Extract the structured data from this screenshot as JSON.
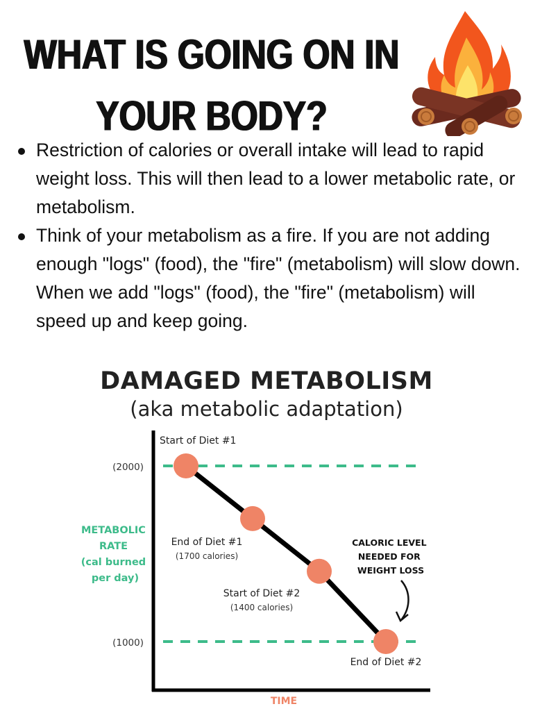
{
  "header": {
    "title_lines": [
      "What is going on in",
      "your body?"
    ],
    "icon": "campfire-icon"
  },
  "bullets": [
    "Restriction of calories or overall intake will lead to rapid weight loss. This will then lead to a lower metabolic rate, or metabolism.",
    "Think of your metabolism as a fire. If you are not adding enough \"logs\" (food), the \"fire\" (metabolism) will slow down. When we add \"logs\" (food), the \"fire\" (metabolism) will speed up and keep going."
  ],
  "chart_data": {
    "type": "line",
    "title": "DAMAGED METABOLISM",
    "subtitle": "(aka metabolic adaptation)",
    "xlabel": "TIME",
    "ylabel": [
      "METABOLIC",
      "RATE",
      "(cal burned",
      "per day)"
    ],
    "yticks": [
      {
        "value": 2000,
        "label": "(2000)"
      },
      {
        "value": 1000,
        "label": "(1000)"
      }
    ],
    "reference_lines": [
      2000,
      1000
    ],
    "points": [
      {
        "x": 1,
        "y": 2000,
        "label": "Start of Diet #1",
        "sublabel": ""
      },
      {
        "x": 2,
        "y": 1700,
        "label": "End of Diet #1",
        "sublabel": "(1700 calories)"
      },
      {
        "x": 3,
        "y": 1400,
        "label": "Start of Diet #2",
        "sublabel": "(1400 calories)"
      },
      {
        "x": 4,
        "y": 1000,
        "label": "End of Diet #2",
        "sublabel": ""
      }
    ],
    "annotation": [
      "CALORIC LEVEL",
      "NEEDED FOR",
      "WEIGHT LOSS"
    ],
    "grid": false,
    "colors": {
      "points": "#ef8466",
      "reference": "#3dbb8a",
      "ylabel": "#3dbb8a",
      "xlabel": "#ef8466",
      "line": "#000000"
    }
  }
}
